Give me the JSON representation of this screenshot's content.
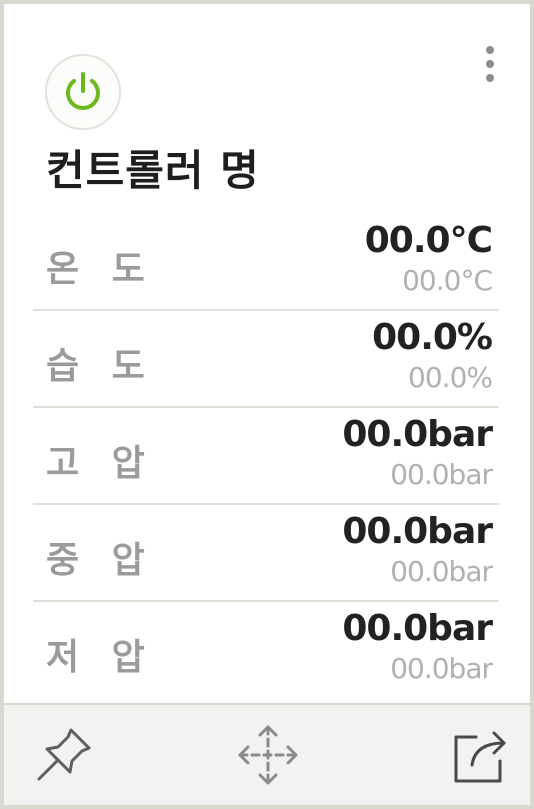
{
  "controller": {
    "title": "컨트롤러 명",
    "power_icon": "power-icon",
    "power_color": "#6aba1e",
    "more_icon": "more-vertical-icon"
  },
  "readings": [
    {
      "label": "온 도",
      "value": "00.0°C",
      "sub": "00.0°C"
    },
    {
      "label": "습 도",
      "value": "00.0%",
      "sub": "00.0%"
    },
    {
      "label": "고 압",
      "value": "00.0bar",
      "sub": "00.0bar"
    },
    {
      "label": "중 압",
      "value": "00.0bar",
      "sub": "00.0bar"
    },
    {
      "label": "저 압",
      "value": "00.0bar",
      "sub": "00.0bar"
    }
  ],
  "footer": {
    "icons": [
      "pin-icon",
      "move-icon",
      "share-icon"
    ]
  }
}
